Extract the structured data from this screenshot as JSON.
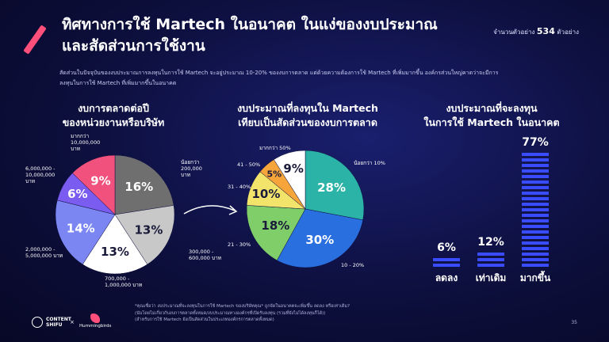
{
  "title_line1": "ทิศทางการใช้ Martech ในอนาคต ในแง่ของงบประมาณ",
  "title_line2": "และสัดส่วนการใช้งาน",
  "sample_prefix": "จำนวนตัวอย่าง",
  "sample_count": "534",
  "sample_suffix": "ตัวอย่าง",
  "description_line1": "สัดส่วนในปัจจุบันของงบประมาณการลงทุนในการใช้ Martech จะอยู่ประมาณ 10-20% ของงบการตลาด แต่ด้วยความต้องการใช้ Martech ที่เพิ่มมากขึ้น องค์กรส่วนใหญ่คาดว่าจะมีการ",
  "description_line2": "ลงทุนในการใช้ Martech ที่เพิ่มมากขึ้นในอนาคต",
  "footnote_line1": "*คุณเชื่อว่า งบประมาณที่จะลงทุนในการใช้ Martech ของบริษัทคุณ* ถูกจัดในอนาคตจะเพิ่มขึ้น ลดลง หรือเท่าเดิม?",
  "footnote_line2": "(นับโดยไม่เกี่ยวกับงบการตลาดทั้งหมด/งบประมาณทางองค์กรที่เปิดรับลงทุน (รวมที่ยังไม่ได้ลงทุนก็ได้))",
  "footnote_line3": "(สำหรับการใช้ Martech ยังเป็นสัดส่วนในประเภทองค์กรการตลาดทั้งหมด)",
  "logo1_line1": "CONTENT",
  "logo1_line2": "SHIFU",
  "logo_separator": "×",
  "logo2_text": "Hummingbirds",
  "page_number": "35",
  "colors": {
    "teal": "#2bb3a7",
    "blue": "#2a6fe0",
    "green": "#7fce6a",
    "yellow": "#f2e46a",
    "orange": "#f5a53a",
    "pink": "#f0517d",
    "purple": "#7b5cf0",
    "gray": "#c8c8c8",
    "darkgray": "#6f6f6f",
    "periwinkle": "#7b86f2",
    "white": "#ffffff",
    "accent": "#ff4f7a",
    "bar_blue": "#3a4cff"
  },
  "chart_data": [
    {
      "type": "pie",
      "title_line1": "งบการตลาดต่อปี",
      "title_line2": "ของหน่วยงานหรือบริษัท",
      "slices": [
        {
          "label": [
            "น้อยกว่า",
            "200,000",
            "บาท"
          ],
          "value": 16,
          "color": "darkgray",
          "text_color": "#ffffff"
        },
        {
          "label": [
            "300,000 -",
            "600,000 บาท"
          ],
          "value": 13,
          "color": "gray",
          "text_color": "#1a1a3a"
        },
        {
          "label": [
            "700,000 -",
            "1,000,000 บาท"
          ],
          "value": 13,
          "color": "white",
          "text_color": "#1a1a3a"
        },
        {
          "label": [
            "2,000,000 -",
            "5,000,000 บาท"
          ],
          "value": 14,
          "color": "periwinkle",
          "text_color": "#ffffff"
        },
        {
          "label": [
            "6,000,000 -",
            "10,000,000",
            "บาท"
          ],
          "value": 6,
          "color": "purple",
          "text_color": "#ffffff"
        },
        {
          "label": [
            "มากกว่า",
            "10,000,000",
            "บาท"
          ],
          "value": 9,
          "color": "pink",
          "text_color": "#ffffff"
        }
      ]
    },
    {
      "type": "pie",
      "title_line1": "งบประมาณที่ลงทุนใน Martech",
      "title_line2": "เทียบเป็นสัดส่วนของงบการตลาด",
      "slices": [
        {
          "label": [
            "น้อยกว่า 10%"
          ],
          "value": 28,
          "color": "teal",
          "text_color": "#ffffff"
        },
        {
          "label": [
            "10 - 20%"
          ],
          "value": 30,
          "color": "blue",
          "text_color": "#ffffff"
        },
        {
          "label": [
            "21 - 30%"
          ],
          "value": 18,
          "color": "green",
          "text_color": "#1a1a3a"
        },
        {
          "label": [
            "31 - 40%"
          ],
          "value": 10,
          "color": "yellow",
          "text_color": "#1a1a3a"
        },
        {
          "label": [
            "41 - 50%"
          ],
          "value": 5,
          "color": "orange",
          "text_color": "#1a1a3a"
        },
        {
          "label": [
            "มากกว่า 50%"
          ],
          "value": 9,
          "color": "white",
          "text_color": "#1a1a3a"
        }
      ]
    },
    {
      "type": "bar",
      "title_line1": "งบประมาณที่จะลงทุน",
      "title_line2": "ในการใช้ Martech ในอนาคต",
      "categories": [
        "ลดลง",
        "เท่าเดิม",
        "มากขึ้น"
      ],
      "values": [
        6,
        12,
        77
      ],
      "value_labels": [
        "6%",
        "12%",
        "77%"
      ],
      "ylim": [
        0,
        77
      ]
    }
  ]
}
